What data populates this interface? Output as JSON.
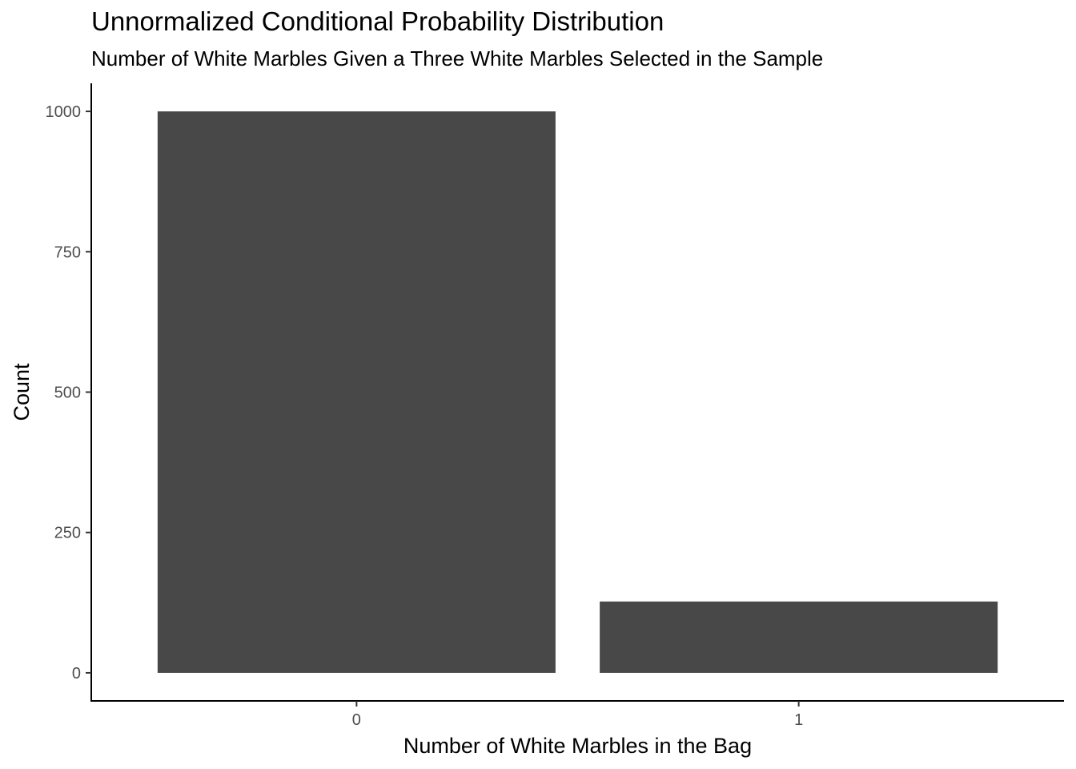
{
  "chart_data": {
    "type": "bar",
    "title": "Unnormalized Conditional Probability Distribution",
    "subtitle": "Number of White Marbles Given a Three White Marbles Selected in the Sample",
    "xlabel": "Number of White Marbles in the Bag",
    "ylabel": "Count",
    "categories": [
      "0",
      "1"
    ],
    "values": [
      1000,
      127
    ],
    "ylim": [
      -50,
      1050
    ],
    "yticks": [
      0,
      250,
      500,
      750,
      1000
    ],
    "ytick_labels": [
      "0",
      "250",
      "500",
      "750",
      "1000"
    ],
    "bar_color": "#484848",
    "axis_color": "#000000",
    "grid": false
  }
}
